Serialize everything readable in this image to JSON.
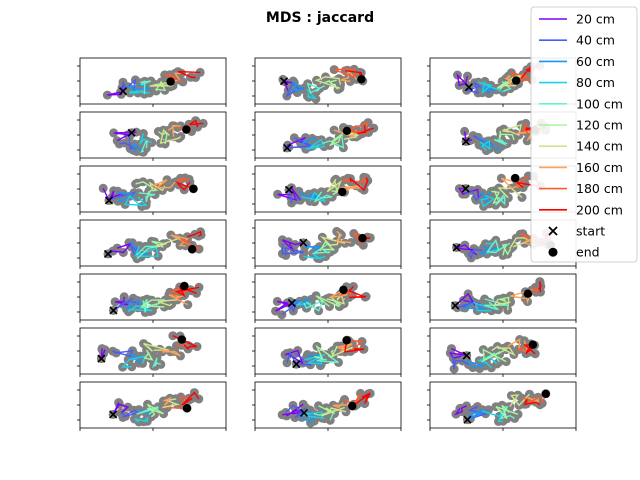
{
  "chart_data": {
    "type": "line",
    "title": "MDS : jaccard",
    "grid": false,
    "legend_placement": "top-right",
    "layout": {
      "rows": 7,
      "cols": 3
    },
    "series": [
      {
        "name": "20 cm",
        "color": "#8000ff"
      },
      {
        "name": "40 cm",
        "color": "#4a5cf8"
      },
      {
        "name": "60 cm",
        "color": "#1996f3"
      },
      {
        "name": "80 cm",
        "color": "#1cd2e6"
      },
      {
        "name": "100 cm",
        "color": "#66f4cf"
      },
      {
        "name": "120 cm",
        "color": "#a4f89e"
      },
      {
        "name": "140 cm",
        "color": "#cfe68c"
      },
      {
        "name": "160 cm",
        "color": "#ffa256"
      },
      {
        "name": "180 cm",
        "color": "#ff5a2d"
      },
      {
        "name": "200 cm",
        "color": "#ff0000"
      }
    ],
    "markers": [
      {
        "name": "start",
        "symbol": "x",
        "color": "#000000"
      },
      {
        "name": "end",
        "symbol": "o",
        "color": "#000000"
      }
    ],
    "colors": {
      "outline": "#808080"
    }
  }
}
